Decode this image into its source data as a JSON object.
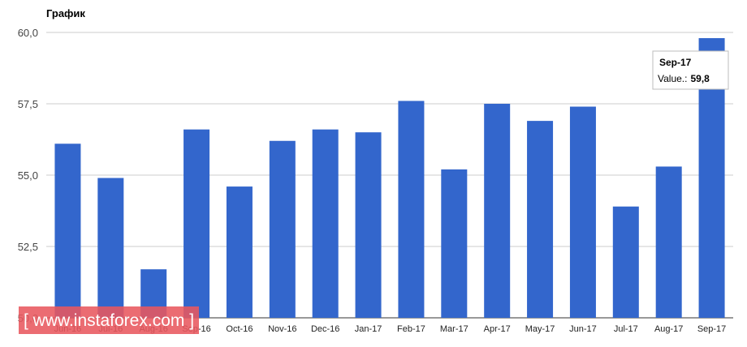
{
  "chart_data": {
    "type": "bar",
    "title": "График",
    "categories": [
      "Jun-16",
      "Jul-16",
      "Aug-16",
      "Sep-16",
      "Oct-16",
      "Nov-16",
      "Dec-16",
      "Jan-17",
      "Feb-17",
      "Mar-17",
      "Apr-17",
      "May-17",
      "Jun-17",
      "Jul-17",
      "Aug-17",
      "Sep-17"
    ],
    "values": [
      56.1,
      54.9,
      51.7,
      56.6,
      54.6,
      56.2,
      56.6,
      56.5,
      57.6,
      55.2,
      57.5,
      56.9,
      57.4,
      53.9,
      55.3,
      59.8
    ],
    "y_ticks": [
      "50,0",
      "52,5",
      "55,0",
      "57,5",
      "60,0"
    ],
    "ylim": [
      50,
      60
    ],
    "grid": true,
    "bar_color": "#3366cc",
    "tooltip": {
      "category": "Sep-17",
      "label": "Value.:",
      "value": "59,8"
    }
  },
  "watermark": {
    "text": "[ www.instaforex.com ]",
    "color": "#e8585e"
  }
}
